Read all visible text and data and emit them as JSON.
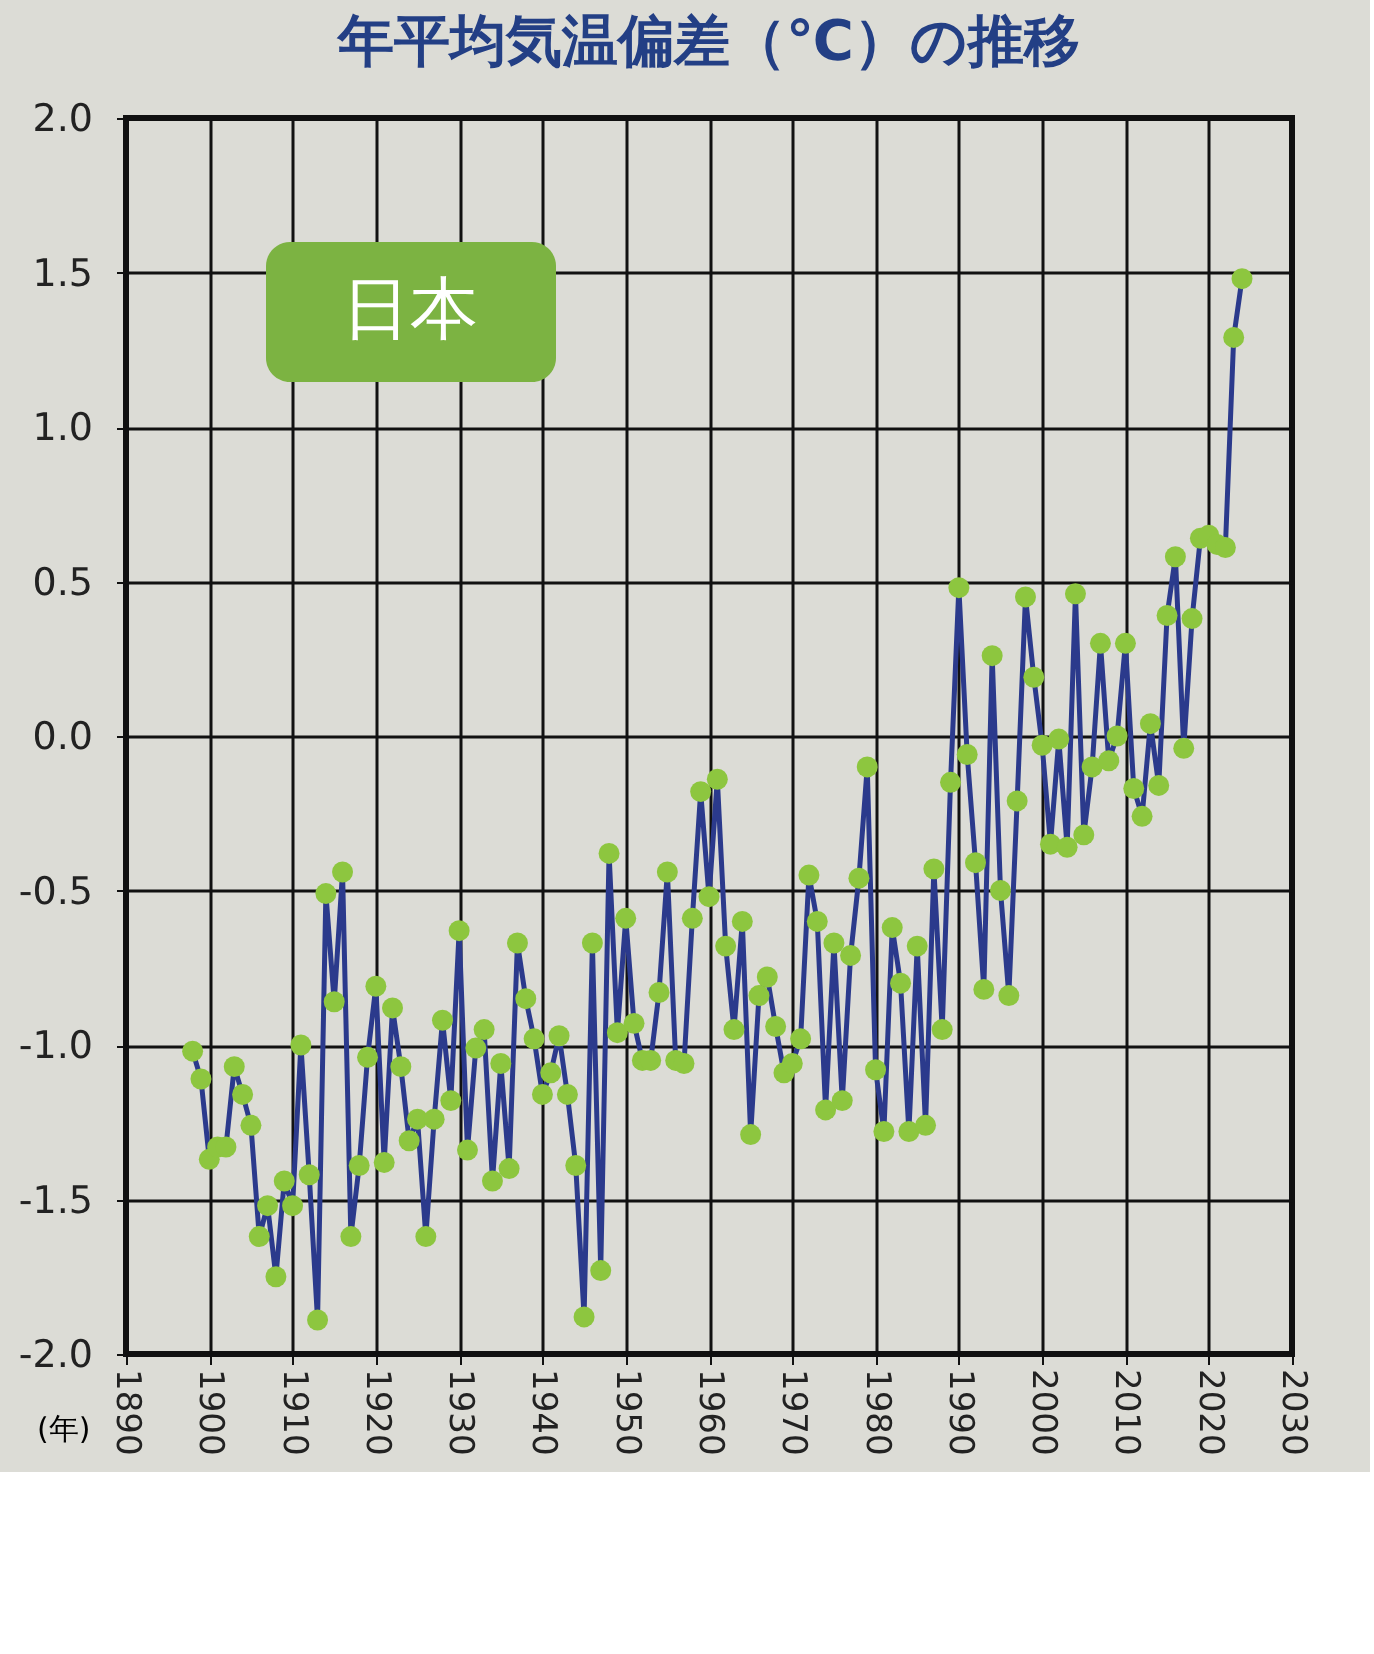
{
  "chart_data": {
    "type": "line",
    "title": "年平均気温偏差（℃）の推移",
    "xlabel": "(年)",
    "annotations": [
      "日本"
    ],
    "x": [
      1898,
      1899,
      1900,
      1901,
      1902,
      1903,
      1904,
      1905,
      1906,
      1907,
      1908,
      1909,
      1910,
      1911,
      1912,
      1913,
      1914,
      1915,
      1916,
      1917,
      1918,
      1919,
      1920,
      1921,
      1922,
      1923,
      1924,
      1925,
      1926,
      1927,
      1928,
      1929,
      1930,
      1931,
      1932,
      1933,
      1934,
      1935,
      1936,
      1937,
      1938,
      1939,
      1940,
      1941,
      1942,
      1943,
      1944,
      1945,
      1946,
      1947,
      1948,
      1949,
      1950,
      1951,
      1952,
      1953,
      1954,
      1955,
      1956,
      1957,
      1958,
      1959,
      1960,
      1961,
      1962,
      1963,
      1964,
      1965,
      1966,
      1967,
      1968,
      1969,
      1970,
      1971,
      1972,
      1973,
      1974,
      1975,
      1976,
      1977,
      1978,
      1979,
      1980,
      1981,
      1982,
      1983,
      1984,
      1985,
      1986,
      1987,
      1988,
      1989,
      1990,
      1991,
      1992,
      1993,
      1994,
      1995,
      1996,
      1997,
      1998,
      1999,
      2000,
      2001,
      2002,
      2003,
      2004,
      2005,
      2006,
      2007,
      2008,
      2009,
      2010,
      2011,
      2012,
      2013,
      2014,
      2015,
      2016,
      2017,
      2018,
      2019,
      2020,
      2021,
      2022,
      2023,
      2024
    ],
    "series": [
      {
        "color": "#2b3a8c",
        "values": [
          -1.02,
          -1.11,
          -1.37,
          -1.33,
          -1.33,
          -1.07,
          -1.16,
          -1.26,
          -1.62,
          -1.52,
          -1.75,
          -1.44,
          -1.52,
          -1.0,
          -1.42,
          -1.89,
          -0.51,
          -0.86,
          -0.44,
          -1.62,
          -1.39,
          -1.04,
          -0.81,
          -1.38,
          -0.88,
          -1.07,
          -1.31,
          -1.24,
          -1.62,
          -1.24,
          -0.92,
          -1.18,
          -0.63,
          -1.34,
          -1.01,
          -0.95,
          -1.44,
          -1.06,
          -1.4,
          -0.67,
          -0.85,
          -0.98,
          -1.16,
          -1.09,
          -0.97,
          -1.16,
          -1.39,
          -1.88,
          -0.67,
          -1.73,
          -0.38,
          -0.96,
          -0.59,
          -0.93,
          -1.05,
          -1.05,
          -0.83,
          -0.44,
          -1.05,
          -1.06,
          -0.59,
          -0.18,
          -0.52,
          -0.14,
          -0.68,
          -0.95,
          -0.6,
          -1.29,
          -0.84,
          -0.78,
          -0.94,
          -1.09,
          -1.06,
          -0.98,
          -0.45,
          -0.6,
          -1.21,
          -0.67,
          -1.18,
          -0.71,
          -0.46,
          -0.1,
          -1.08,
          -1.28,
          -0.62,
          -0.8,
          -1.28,
          -0.68,
          -1.26,
          -0.43,
          -0.95,
          -0.15,
          0.48,
          -0.06,
          -0.41,
          -0.82,
          0.26,
          -0.5,
          -0.84,
          -0.21,
          0.45,
          0.19,
          -0.03,
          -0.35,
          -0.01,
          -0.36,
          0.46,
          -0.32,
          -0.1,
          0.3,
          -0.08,
          0.0,
          0.3,
          -0.17,
          -0.26,
          0.04,
          -0.16,
          0.39,
          0.58,
          -0.04,
          0.38,
          0.64,
          0.65,
          0.62,
          0.61,
          1.29,
          1.48
        ]
      }
    ],
    "xlim": [
      1890,
      2030
    ],
    "xticks": [
      1890,
      1900,
      1910,
      1920,
      1930,
      1940,
      1950,
      1960,
      1970,
      1980,
      1990,
      2000,
      2010,
      2020,
      2030
    ],
    "ylim": [
      -2.0,
      2.0
    ],
    "yticks": [
      {
        "value": 2,
        "label": "2.0"
      },
      {
        "value": 1.5,
        "label": "1.5"
      },
      {
        "value": 1,
        "label": "1.0"
      },
      {
        "value": 0.5,
        "label": "0.5"
      },
      {
        "value": 0,
        "label": "0.0"
      },
      {
        "value": -0.5,
        "label": "-0.5"
      },
      {
        "value": -1,
        "label": "-1.0"
      },
      {
        "value": -1.5,
        "label": "-1.5"
      },
      {
        "value": -2,
        "label": "-2.0"
      }
    ],
    "grid": true,
    "marker": "circle",
    "line_style": "solid"
  }
}
